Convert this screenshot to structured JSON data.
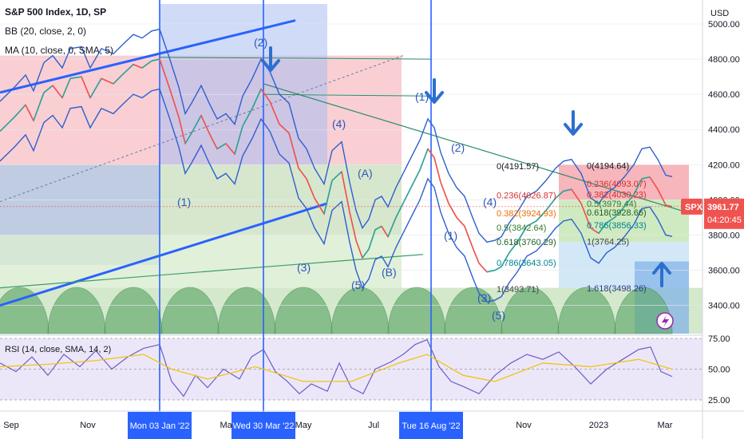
{
  "legend": {
    "title": "S&P 500 Index, 1D, SP",
    "bb": "BB (20, close, 2, 0)",
    "ma": "MA (10, close, 0, SMA, 5)",
    "rsi": "RSI (14, close, SMA, 14, 2)"
  },
  "chart_data": {
    "type": "line",
    "title": "S&P 500 Index, 1D, SP",
    "price_axis": {
      "unit": "USD",
      "ticks": [
        "5000.00",
        "4800.00",
        "4600.00",
        "4400.00",
        "4200.00",
        "4000.00",
        "3800.00",
        "3600.00",
        "3400.00"
      ],
      "range": [
        3250,
        5020
      ]
    },
    "rsi_axis": {
      "ticks": [
        "75.00",
        "50.00",
        "25.00"
      ],
      "range": [
        20,
        82
      ]
    },
    "time_axis": {
      "ticks": [
        "Sep",
        "Nov",
        "Mar",
        "May",
        "Jul",
        "Nov",
        "2023",
        "Mar"
      ],
      "highlighted": [
        "Mon 03 Jan '22",
        "Wed 30 Mar '22",
        "Tue 16 Aug '22"
      ]
    },
    "price_series": [
      {
        "t": 0,
        "v": 4390
      },
      {
        "t": 18,
        "v": 4470
      },
      {
        "t": 32,
        "v": 4540
      },
      {
        "t": 42,
        "v": 4450
      },
      {
        "t": 55,
        "v": 4610
      },
      {
        "t": 66,
        "v": 4650
      },
      {
        "t": 78,
        "v": 4580
      },
      {
        "t": 88,
        "v": 4690
      },
      {
        "t": 102,
        "v": 4700
      },
      {
        "t": 113,
        "v": 4580
      },
      {
        "t": 127,
        "v": 4690
      },
      {
        "t": 142,
        "v": 4660
      },
      {
        "t": 153,
        "v": 4710
      },
      {
        "t": 167,
        "v": 4770
      },
      {
        "t": 178,
        "v": 4750
      },
      {
        "t": 190,
        "v": 4790
      },
      {
        "t": 200,
        "v": 4800
      },
      {
        "t": 212,
        "v": 4640
      },
      {
        "t": 224,
        "v": 4470
      },
      {
        "t": 232,
        "v": 4320
      },
      {
        "t": 240,
        "v": 4380
      },
      {
        "t": 252,
        "v": 4480
      },
      {
        "t": 262,
        "v": 4380
      },
      {
        "t": 272,
        "v": 4290
      },
      {
        "t": 283,
        "v": 4320
      },
      {
        "t": 294,
        "v": 4260
      },
      {
        "t": 304,
        "v": 4420
      },
      {
        "t": 316,
        "v": 4520
      },
      {
        "t": 327,
        "v": 4630
      },
      {
        "t": 338,
        "v": 4560
      },
      {
        "t": 350,
        "v": 4430
      },
      {
        "t": 362,
        "v": 4380
      },
      {
        "t": 374,
        "v": 4180
      },
      {
        "t": 384,
        "v": 4120
      },
      {
        "t": 394,
        "v": 4010
      },
      {
        "t": 406,
        "v": 3920
      },
      {
        "t": 416,
        "v": 4110
      },
      {
        "t": 428,
        "v": 4160
      },
      {
        "t": 438,
        "v": 3930
      },
      {
        "t": 446,
        "v": 3770
      },
      {
        "t": 454,
        "v": 3670
      },
      {
        "t": 462,
        "v": 3720
      },
      {
        "t": 470,
        "v": 3830
      },
      {
        "t": 478,
        "v": 3850
      },
      {
        "t": 486,
        "v": 3790
      },
      {
        "t": 496,
        "v": 3900
      },
      {
        "t": 506,
        "v": 3990
      },
      {
        "t": 516,
        "v": 4080
      },
      {
        "t": 526,
        "v": 4170
      },
      {
        "t": 536,
        "v": 4290
      },
      {
        "t": 544,
        "v": 4240
      },
      {
        "t": 552,
        "v": 4100
      },
      {
        "t": 562,
        "v": 3980
      },
      {
        "t": 572,
        "v": 3900
      },
      {
        "t": 582,
        "v": 3850
      },
      {
        "t": 592,
        "v": 3730
      },
      {
        "t": 600,
        "v": 3640
      },
      {
        "t": 610,
        "v": 3590
      },
      {
        "t": 620,
        "v": 3600
      },
      {
        "t": 628,
        "v": 3620
      },
      {
        "t": 638,
        "v": 3700
      },
      {
        "t": 648,
        "v": 3760
      },
      {
        "t": 660,
        "v": 3850
      },
      {
        "t": 672,
        "v": 3880
      },
      {
        "t": 684,
        "v": 3940
      },
      {
        "t": 696,
        "v": 4010
      },
      {
        "t": 706,
        "v": 4050
      },
      {
        "t": 716,
        "v": 4060
      },
      {
        "t": 728,
        "v": 3980
      },
      {
        "t": 740,
        "v": 3840
      },
      {
        "t": 750,
        "v": 3810
      },
      {
        "t": 760,
        "v": 3870
      },
      {
        "t": 770,
        "v": 3900
      },
      {
        "t": 782,
        "v": 3960
      },
      {
        "t": 794,
        "v": 4030
      },
      {
        "t": 804,
        "v": 4120
      },
      {
        "t": 814,
        "v": 4130
      },
      {
        "t": 824,
        "v": 4060
      },
      {
        "t": 834,
        "v": 3970
      },
      {
        "t": 842,
        "v": 3962
      }
    ],
    "rsi_series": [
      {
        "t": 0,
        "v": 55
      },
      {
        "t": 20,
        "v": 48
      },
      {
        "t": 40,
        "v": 60
      },
      {
        "t": 60,
        "v": 45
      },
      {
        "t": 80,
        "v": 62
      },
      {
        "t": 100,
        "v": 52
      },
      {
        "t": 120,
        "v": 65
      },
      {
        "t": 140,
        "v": 50
      },
      {
        "t": 160,
        "v": 60
      },
      {
        "t": 180,
        "v": 67
      },
      {
        "t": 200,
        "v": 70
      },
      {
        "t": 215,
        "v": 40
      },
      {
        "t": 230,
        "v": 28
      },
      {
        "t": 245,
        "v": 45
      },
      {
        "t": 260,
        "v": 35
      },
      {
        "t": 280,
        "v": 50
      },
      {
        "t": 300,
        "v": 42
      },
      {
        "t": 315,
        "v": 60
      },
      {
        "t": 330,
        "v": 66
      },
      {
        "t": 345,
        "v": 48
      },
      {
        "t": 360,
        "v": 40
      },
      {
        "t": 375,
        "v": 30
      },
      {
        "t": 390,
        "v": 38
      },
      {
        "t": 410,
        "v": 32
      },
      {
        "t": 425,
        "v": 55
      },
      {
        "t": 440,
        "v": 35
      },
      {
        "t": 455,
        "v": 30
      },
      {
        "t": 470,
        "v": 50
      },
      {
        "t": 490,
        "v": 56
      },
      {
        "t": 505,
        "v": 62
      },
      {
        "t": 520,
        "v": 70
      },
      {
        "t": 535,
        "v": 74
      },
      {
        "t": 550,
        "v": 52
      },
      {
        "t": 565,
        "v": 40
      },
      {
        "t": 580,
        "v": 36
      },
      {
        "t": 600,
        "v": 30
      },
      {
        "t": 620,
        "v": 45
      },
      {
        "t": 640,
        "v": 55
      },
      {
        "t": 660,
        "v": 62
      },
      {
        "t": 680,
        "v": 58
      },
      {
        "t": 700,
        "v": 64
      },
      {
        "t": 720,
        "v": 52
      },
      {
        "t": 740,
        "v": 38
      },
      {
        "t": 760,
        "v": 50
      },
      {
        "t": 780,
        "v": 58
      },
      {
        "t": 800,
        "v": 66
      },
      {
        "t": 815,
        "v": 68
      },
      {
        "t": 828,
        "v": 48
      },
      {
        "t": 842,
        "v": 44
      }
    ],
    "rsi_ma_series": [
      {
        "t": 0,
        "v": 52
      },
      {
        "t": 60,
        "v": 54
      },
      {
        "t": 120,
        "v": 57
      },
      {
        "t": 180,
        "v": 62
      },
      {
        "t": 215,
        "v": 50
      },
      {
        "t": 260,
        "v": 42
      },
      {
        "t": 320,
        "v": 52
      },
      {
        "t": 380,
        "v": 40
      },
      {
        "t": 440,
        "v": 40
      },
      {
        "t": 500,
        "v": 55
      },
      {
        "t": 535,
        "v": 62
      },
      {
        "t": 580,
        "v": 45
      },
      {
        "t": 620,
        "v": 40
      },
      {
        "t": 680,
        "v": 55
      },
      {
        "t": 740,
        "v": 52
      },
      {
        "t": 800,
        "v": 58
      },
      {
        "t": 842,
        "v": 50
      }
    ],
    "fib_levels": [
      {
        "label": "0(4191.57)",
        "v": 4191.57
      },
      {
        "label": "0.236(4026.87)",
        "v": 4026.87
      },
      {
        "label": "0.382(3924.93)",
        "v": 3924.93
      },
      {
        "label": "0.5(3842.64)",
        "v": 3842.64
      },
      {
        "label": "0.618(3760.29)",
        "v": 3760.29
      },
      {
        "label": "0.786(3643.05)",
        "v": 3643.05
      },
      {
        "label": "1(3493.71)",
        "v": 3493.71
      }
    ],
    "fib_levels_2": [
      {
        "label": "0(4194.64)",
        "v": 4194.64
      },
      {
        "label": "0.236(4093.07)",
        "v": 4093.07
      },
      {
        "label": "0.382(4030.23)",
        "v": 4030.23
      },
      {
        "label": "0.5(3979.44)",
        "v": 3979.44
      },
      {
        "label": "0.618(3928.66)",
        "v": 3928.66
      },
      {
        "label": "0.786(3856.33)",
        "v": 3856.33
      },
      {
        "label": "1(3764.25)",
        "v": 3764.25
      },
      {
        "label": "1.618(3498.26)",
        "v": 3498.26
      }
    ],
    "wave_labels": [
      "(1)",
      "(2)",
      "(3)",
      "(4)",
      "(5)",
      "(A)",
      "(B)",
      "(1)",
      "(2)",
      "(3)",
      "(4)",
      "(5)",
      "(1)"
    ],
    "last_price": {
      "label": "SPX",
      "value": "3961.77",
      "countdown": "04:20:45",
      "v": 3961.77
    }
  }
}
